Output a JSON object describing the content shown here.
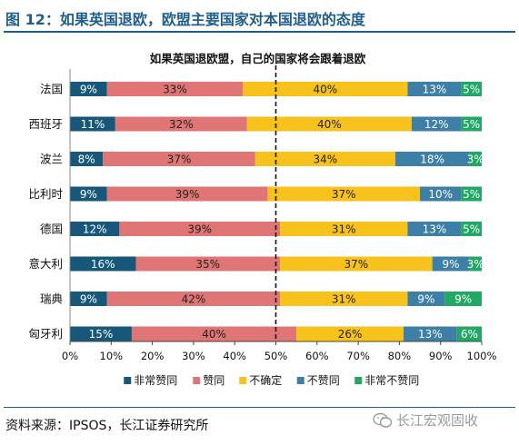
{
  "figure": {
    "title": "图 12：如果英国退欧，欧盟主要国家对本国退欧的态度",
    "source": "资料来源：IPSOS，长江证券研究所",
    "watermark": "长江宏观固收",
    "colors": {
      "title": "#1f5e8a",
      "rule": "#1f5e8a"
    }
  },
  "chart_data": {
    "type": "bar",
    "orientation": "horizontal",
    "stacked": true,
    "title": "如果英国退欧盟，自己的国家将会跟着退欧",
    "categories": [
      "法国",
      "西班牙",
      "波兰",
      "比利时",
      "德国",
      "意大利",
      "瑞典",
      "匈牙利"
    ],
    "series": [
      {
        "name": "非常赞同",
        "color": "#17587a",
        "values": [
          9,
          11,
          8,
          9,
          12,
          16,
          9,
          15
        ]
      },
      {
        "name": "赞同",
        "color": "#e07575",
        "values": [
          33,
          32,
          37,
          39,
          39,
          35,
          42,
          40
        ]
      },
      {
        "name": "不确定",
        "color": "#f6c21b",
        "values": [
          40,
          40,
          34,
          37,
          31,
          37,
          31,
          26
        ]
      },
      {
        "name": "不赞同",
        "color": "#3d7fa6",
        "values": [
          13,
          12,
          18,
          10,
          13,
          9,
          9,
          13
        ]
      },
      {
        "name": "非常不赞同",
        "color": "#21a865",
        "values": [
          5,
          5,
          3,
          5,
          5,
          3,
          9,
          6
        ]
      }
    ],
    "value_format": "{v}%",
    "xlim": [
      0,
      100
    ],
    "xticks": [
      "0%",
      "10%",
      "20%",
      "30%",
      "40%",
      "50%",
      "60%",
      "70%",
      "80%",
      "90%",
      "100%"
    ],
    "reference_line": {
      "x": 50,
      "style": "dashed"
    },
    "legend_position": "bottom",
    "grid": false
  }
}
